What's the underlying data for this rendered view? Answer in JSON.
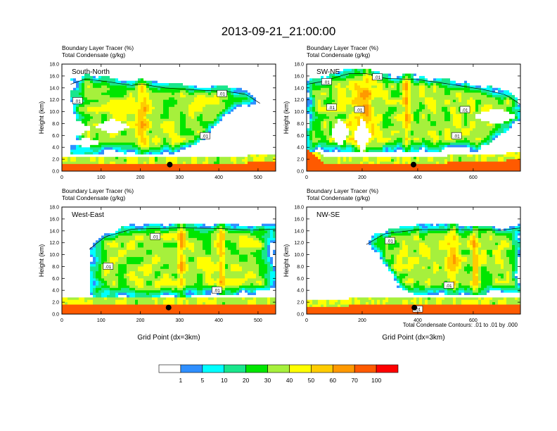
{
  "figure": {
    "title": "2013-09-21_21:00:00",
    "footnote": "Total Condensate Contours: .01 to .01 by .000",
    "colorbar": {
      "colors": [
        "#ffffff",
        "#2f8fff",
        "#00ffff",
        "#19e68c",
        "#00e600",
        "#a6f03c",
        "#ffff00",
        "#ffcc00",
        "#ff9900",
        "#ff5a00",
        "#ff0000"
      ],
      "labels": [
        "1",
        "5",
        "10",
        "20",
        "30",
        "40",
        "50",
        "60",
        "70",
        "100"
      ]
    }
  },
  "chart_data": [
    {
      "type": "heatmap",
      "panel": "South-North",
      "label": "South-North",
      "subtitle_line1": "Boundary Layer Tracer   (%)",
      "subtitle_line2": "Total Condensate   (g/kg)",
      "xlabel": "",
      "ylabel": "Height (km)",
      "xlim": [
        0,
        545
      ],
      "ylim": [
        0,
        18
      ],
      "xticks": [
        "0",
        "100",
        "200",
        "300",
        "400",
        "500"
      ],
      "xtick_values": [
        0,
        100,
        200,
        300,
        400,
        500
      ],
      "yticks": [
        "0.0",
        "2.0",
        "4.0",
        "6.0",
        "8.0",
        "10.0",
        "12.0",
        "14.0",
        "16.0",
        "18.0"
      ],
      "marker": {
        "x": 275,
        "y": 1.1
      },
      "contour_labels": [
        {
          "text": ".01",
          "x": 40,
          "y": 11.8
        },
        {
          "text": ".01",
          "x": 408,
          "y": 13.0
        },
        {
          "text": ".01",
          "x": 365,
          "y": 5.9
        }
      ]
    },
    {
      "type": "heatmap",
      "panel": "SW-NE",
      "label": "SW-NE",
      "subtitle_line1": "Boundary Layer Tracer   (%)",
      "subtitle_line2": "Total Condensate   (g/kg)",
      "xlabel": "",
      "ylabel": "Height (km)",
      "xlim": [
        0,
        770
      ],
      "ylim": [
        0,
        18
      ],
      "xticks": [
        "0",
        "200",
        "400",
        "600"
      ],
      "xtick_values": [
        0,
        200,
        400,
        600
      ],
      "yticks": [
        "0.0",
        "2.0",
        "4.0",
        "6.0",
        "8.0",
        "10.0",
        "12.0",
        "14.0",
        "16.0",
        "18.0"
      ],
      "marker": {
        "x": 385,
        "y": 1.1
      },
      "contour_labels": [
        {
          "text": ".01",
          "x": 72,
          "y": 15.0
        },
        {
          "text": ".01",
          "x": 255,
          "y": 15.8
        },
        {
          "text": ".01",
          "x": 90,
          "y": 10.7
        },
        {
          "text": ".01",
          "x": 190,
          "y": 10.3
        },
        {
          "text": ".01",
          "x": 570,
          "y": 10.3
        },
        {
          "text": ".01",
          "x": 540,
          "y": 5.9
        }
      ]
    },
    {
      "type": "heatmap",
      "panel": "West-East",
      "label": "West-East",
      "subtitle_line1": "Boundary Layer Tracer   (%)",
      "subtitle_line2": "Total Condensate   (g/kg)",
      "xlabel": "Grid Point (dx=3km)",
      "ylabel": "Height (km)",
      "xlim": [
        0,
        545
      ],
      "ylim": [
        0,
        18
      ],
      "xticks": [
        "0",
        "100",
        "200",
        "300",
        "400",
        "500"
      ],
      "xtick_values": [
        0,
        100,
        200,
        300,
        400,
        500
      ],
      "yticks": [
        "0.0",
        "2.0",
        "4.0",
        "6.0",
        "8.0",
        "10.0",
        "12.0",
        "14.0",
        "16.0",
        "18.0"
      ],
      "marker": {
        "x": 272,
        "y": 1.1
      },
      "contour_labels": [
        {
          "text": ".01",
          "x": 238,
          "y": 13.0
        },
        {
          "text": ".01",
          "x": 118,
          "y": 8.0
        },
        {
          "text": ".01",
          "x": 395,
          "y": 4.0
        }
      ]
    },
    {
      "type": "heatmap",
      "panel": "NW-SE",
      "label": "NW-SE",
      "subtitle_line1": "Boundary Layer Tracer   (%)",
      "subtitle_line2": "Total Condensate   (g/kg)",
      "xlabel": "Grid Point (dx=3km)",
      "ylabel": "Height (km)",
      "xlim": [
        0,
        770
      ],
      "ylim": [
        0,
        18
      ],
      "xticks": [
        "0",
        "200",
        "400",
        "600"
      ],
      "xtick_values": [
        0,
        200,
        400,
        600
      ],
      "yticks": [
        "0.0",
        "2.0",
        "4.0",
        "6.0",
        "8.0",
        "10.0",
        "12.0",
        "14.0",
        "16.0",
        "18.0"
      ],
      "marker": {
        "x": 388,
        "y": 1.1
      },
      "contour_labels": [
        {
          "text": ".01",
          "x": 300,
          "y": 12.3
        },
        {
          "text": ".01",
          "x": 512,
          "y": 4.8
        },
        {
          "text": ".01",
          "x": 400,
          "y": 0.8
        }
      ]
    }
  ]
}
